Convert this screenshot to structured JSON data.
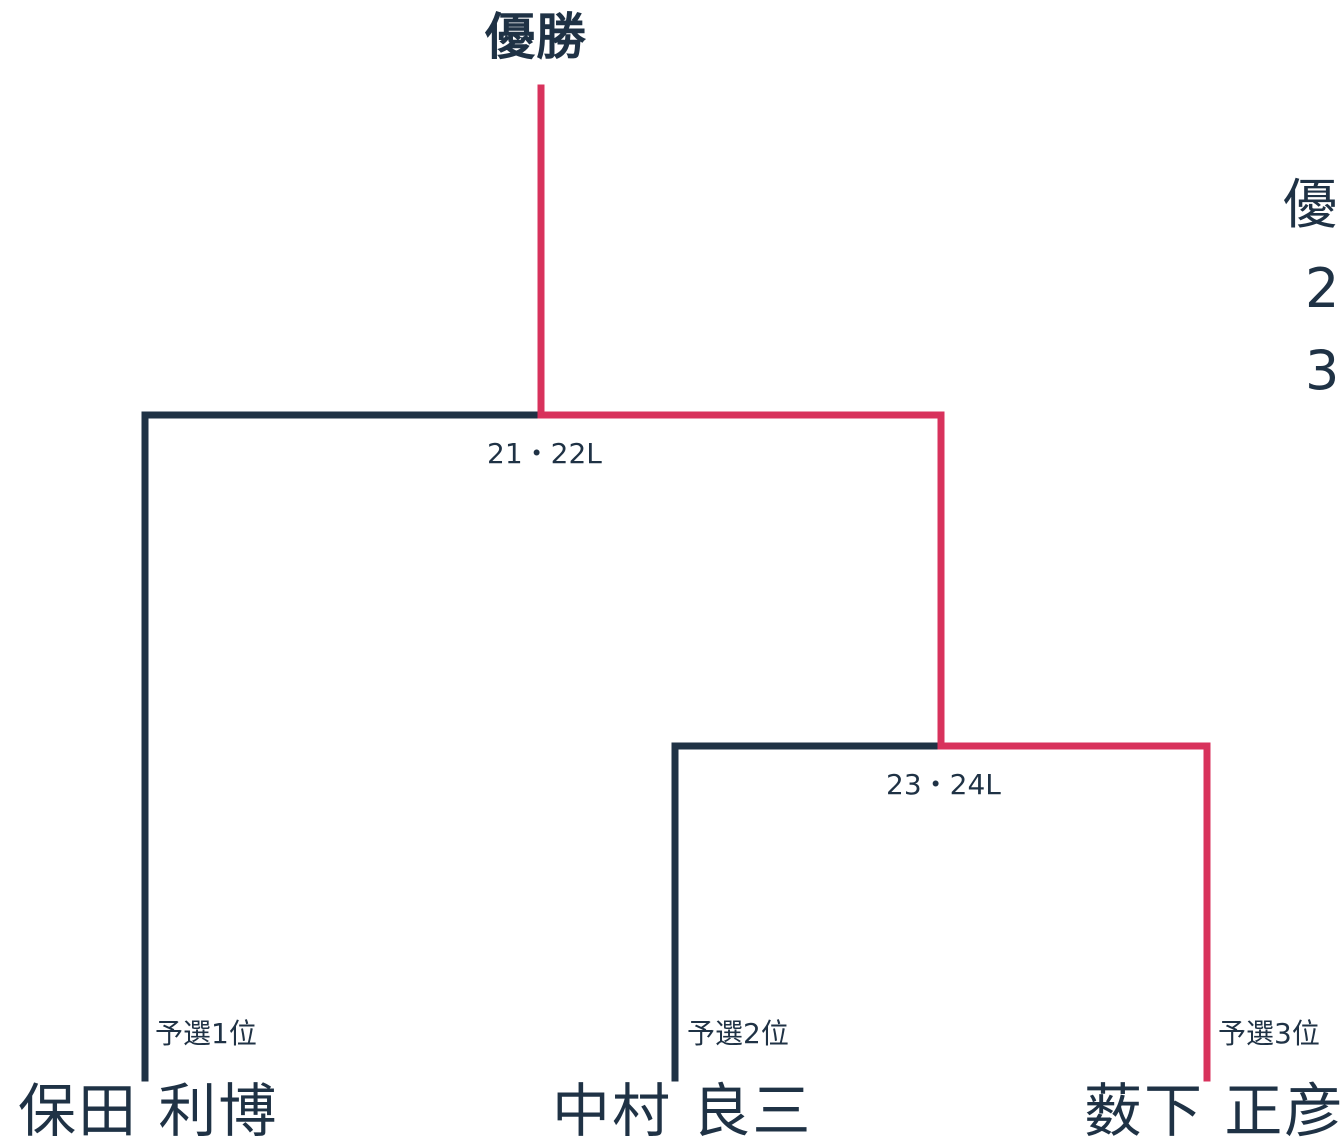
{
  "title": "優勝",
  "colors": {
    "winner_path": "#d8325c",
    "other_path": "#1f3245",
    "text": "#1f3245"
  },
  "matches": [
    {
      "label": "21・22L"
    },
    {
      "label": "23・24L"
    }
  ],
  "players": [
    {
      "seed": "予選1位",
      "name": "保田 利博"
    },
    {
      "seed": "予選2位",
      "name": "中村 良三"
    },
    {
      "seed": "予選3位",
      "name": "薮下 正彦"
    }
  ],
  "side_legend": [
    "優",
    "2",
    "3"
  ]
}
